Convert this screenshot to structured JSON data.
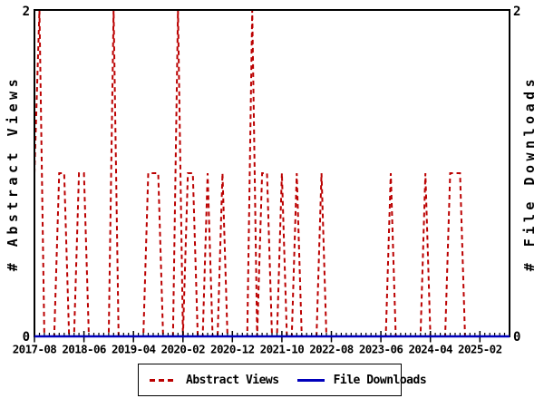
{
  "figure": {
    "y_axis_left_label": "# Abstract Views",
    "y_axis_right_label": "# File Downloads",
    "y_tick_top": "2",
    "y_tick_bottom": "0"
  },
  "legend": {
    "items": [
      {
        "label": "Abstract Views",
        "color": "#bb0000",
        "line_style": "dashed"
      },
      {
        "label": "File Downloads",
        "color": "#0000bb",
        "line_style": "solid"
      }
    ]
  },
  "chart_data": {
    "type": "line",
    "title": "",
    "xlabel": "",
    "ylabel_left": "# Abstract Views",
    "ylabel_right": "# File Downloads",
    "grid": false,
    "legend_position": "bottom-center",
    "ylim": [
      0,
      2
    ],
    "y_tick_values": [
      "0",
      "2"
    ],
    "x_months_start": "2017-08",
    "x_months_end": "2025-08",
    "x_minor_tick_every_months": 1,
    "x_major_tick_every_months": 10,
    "x_tick_labels": [
      "2017-08",
      "2018-06",
      "2019-04",
      "2020-02",
      "2020-12",
      "2021-10",
      "2022-08",
      "2023-06",
      "2024-04",
      "2025-02"
    ],
    "series": [
      {
        "name": "Abstract Views",
        "color": "#bb0000",
        "style": "dashed",
        "axis": "left",
        "values": [
          1,
          2,
          0,
          0,
          0,
          1,
          1,
          0,
          0,
          1,
          1,
          0,
          0,
          0,
          0,
          0,
          2,
          0,
          0,
          0,
          0,
          0,
          0,
          1,
          1,
          1,
          0,
          0,
          0,
          2,
          0,
          1,
          1,
          0,
          0,
          1,
          0,
          0,
          1,
          0,
          0,
          0,
          0,
          0,
          2,
          0,
          1,
          1,
          0,
          0,
          1,
          0,
          0,
          1,
          0,
          0,
          0,
          0,
          1,
          0,
          0,
          0,
          0,
          0,
          0,
          0,
          0,
          0,
          0,
          0,
          0,
          0,
          1,
          0,
          0,
          0,
          0,
          0,
          0,
          1,
          0,
          0,
          0,
          0,
          1,
          1,
          1,
          0,
          0,
          0,
          0,
          0,
          0,
          0,
          0,
          0,
          0
        ]
      },
      {
        "name": "File Downloads",
        "color": "#0000bb",
        "style": "solid",
        "axis": "right",
        "values": [
          0,
          0,
          0,
          0,
          0,
          0,
          0,
          0,
          0,
          0,
          0,
          0,
          0,
          0,
          0,
          0,
          0,
          0,
          0,
          0,
          0,
          0,
          0,
          0,
          0,
          0,
          0,
          0,
          0,
          0,
          0,
          0,
          0,
          0,
          0,
          0,
          0,
          0,
          0,
          0,
          0,
          0,
          0,
          0,
          0,
          0,
          0,
          0,
          0,
          0,
          0,
          0,
          0,
          0,
          0,
          0,
          0,
          0,
          0,
          0,
          0,
          0,
          0,
          0,
          0,
          0,
          0,
          0,
          0,
          0,
          0,
          0,
          0,
          0,
          0,
          0,
          0,
          0,
          0,
          0,
          0,
          0,
          0,
          0,
          0,
          0,
          0,
          0,
          0,
          0,
          0,
          0,
          0,
          0,
          0,
          0,
          0
        ]
      }
    ]
  }
}
